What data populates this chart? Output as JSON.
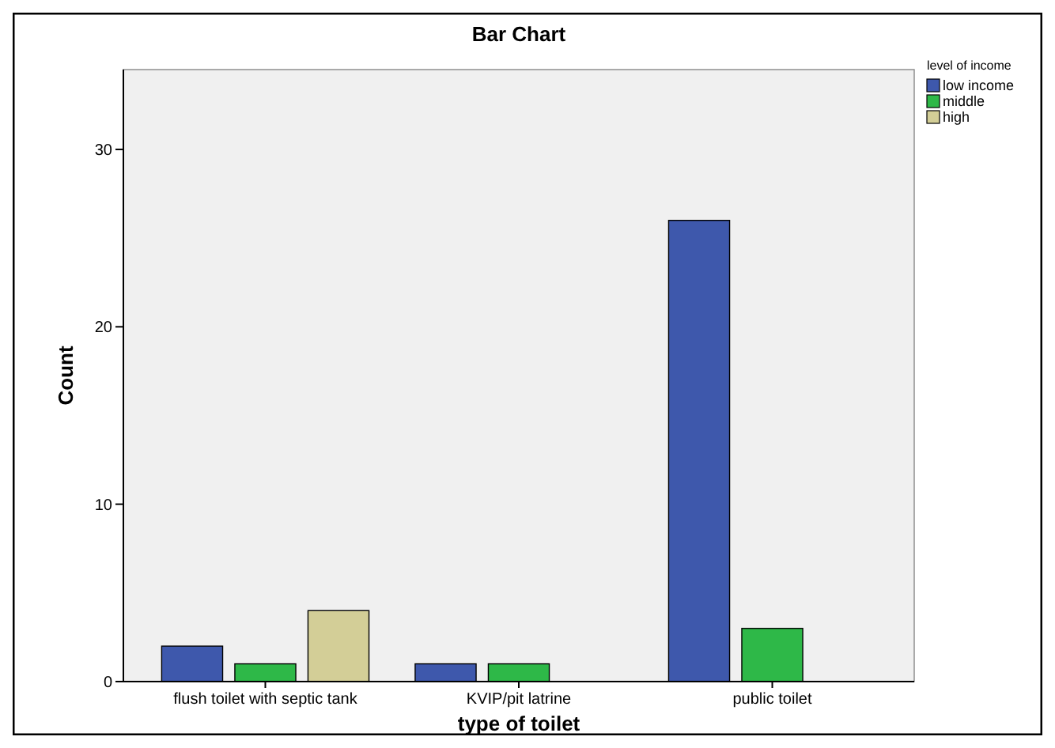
{
  "chart_data": {
    "type": "bar",
    "title": "Bar Chart",
    "xlabel": "type of toilet",
    "ylabel": "Count",
    "legend_title": "level of income",
    "categories": [
      "flush toilet with septic tank",
      "KVIP/pit latrine",
      "public toilet"
    ],
    "series": [
      {
        "name": "low income",
        "color": "#3e58ac",
        "values": [
          2,
          1,
          26
        ]
      },
      {
        "name": "middle",
        "color": "#2eb848",
        "values": [
          1,
          1,
          3
        ]
      },
      {
        "name": "high",
        "color": "#d3ce97",
        "values": [
          4,
          null,
          null
        ]
      }
    ],
    "ylim": [
      0,
      34.5
    ],
    "yticks": [
      0,
      10,
      20,
      30
    ],
    "grid": false,
    "legend": "top right"
  }
}
